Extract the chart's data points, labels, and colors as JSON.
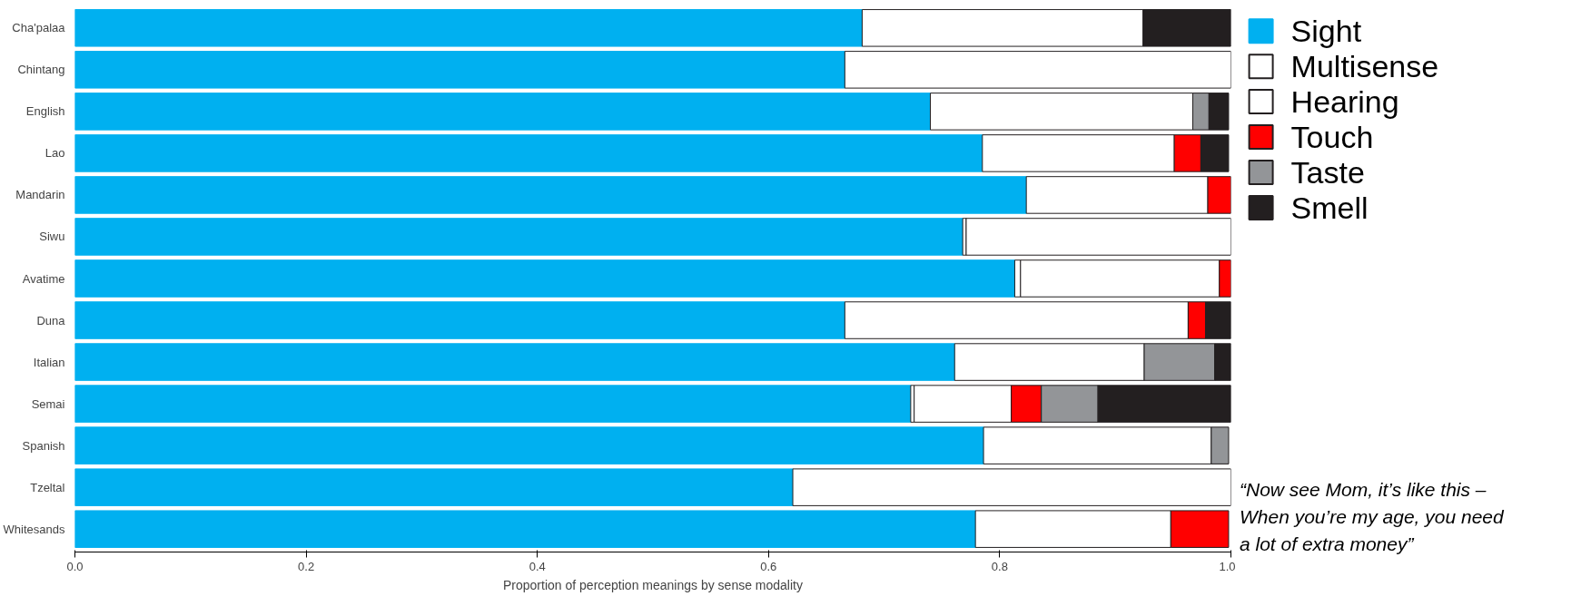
{
  "chart_data": {
    "type": "bar",
    "orientation": "horizontal",
    "stacked": true,
    "xlabel": "Proportion of perception meanings by sense modality",
    "categories": [
      "Cha'palaa",
      "Chintang",
      "English",
      "Lao",
      "Mandarin",
      "Siwu",
      "Avatime",
      "Duna",
      "Italian",
      "Semai",
      "Spanish",
      "Tzeltal",
      "Whitesands"
    ],
    "series": [
      {
        "name": "Sight",
        "color": "#00b0f0",
        "values": [
          0.681,
          0.666,
          0.74,
          0.785,
          0.823,
          0.768,
          0.813,
          0.666,
          0.761,
          0.723,
          0.786,
          0.621,
          0.779
        ]
      },
      {
        "name": "Multisense",
        "color": "#ffffff",
        "values": [
          null,
          null,
          null,
          null,
          null,
          0.003,
          0.005,
          null,
          null,
          0.003,
          null,
          null,
          null
        ]
      },
      {
        "name": "Hearing",
        "color": "#ffffff",
        "values": [
          0.243,
          0.334,
          0.227,
          0.166,
          0.157,
          0.229,
          0.172,
          0.297,
          0.164,
          0.084,
          0.197,
          0.379,
          0.169
        ]
      },
      {
        "name": "Touch",
        "color": "#ff0000",
        "values": [
          null,
          null,
          null,
          0.023,
          0.02,
          null,
          0.01,
          0.015,
          null,
          0.026,
          null,
          null,
          0.05
        ]
      },
      {
        "name": "Taste",
        "color": "#939598",
        "values": [
          null,
          null,
          0.014,
          null,
          null,
          null,
          null,
          null,
          0.061,
          0.049,
          0.015,
          null,
          null
        ]
      },
      {
        "name": "Smell",
        "color": "#231f20",
        "values": [
          0.076,
          null,
          0.017,
          0.024,
          null,
          null,
          null,
          0.022,
          0.014,
          0.115,
          null,
          null,
          null
        ]
      }
    ],
    "xlim": [
      0,
      1
    ],
    "xticks": [
      {
        "value": 0,
        "label": "0.0"
      },
      {
        "value": 0.2,
        "label": "0.2"
      },
      {
        "value": 0.4,
        "label": "0.4"
      },
      {
        "value": 0.6,
        "label": "0.6"
      },
      {
        "value": 0.8,
        "label": "0.8"
      },
      {
        "value": 1,
        "label": "1.0"
      }
    ],
    "grid": false,
    "legend": "right",
    "annotations": [
      "“Now see Mom, it’s like this – When you’re my age, you need a lot of extra money”"
    ]
  }
}
